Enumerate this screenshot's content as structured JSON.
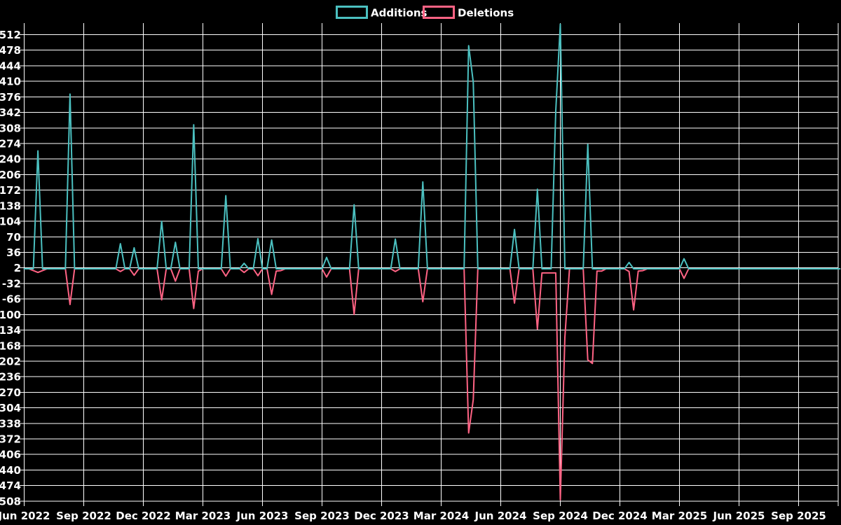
{
  "chart_data": {
    "type": "line",
    "legend_position": "top",
    "grid": true,
    "background_color": "#000000",
    "grid_color": "#ffffff",
    "text_color": "#ffffff",
    "x_tick_labels": [
      "Jun 2022",
      "Sep 2022",
      "Dec 2022",
      "Mar 2023",
      "Jun 2023",
      "Sep 2023",
      "Dec 2023",
      "Mar 2024",
      "Jun 2024",
      "Sep 2024",
      "Dec 2024",
      "Mar 2025",
      "Jun 2025",
      "Sep 2025"
    ],
    "y_tick_values": [
      512,
      478,
      444,
      410,
      376,
      342,
      308,
      274,
      240,
      206,
      172,
      138,
      104,
      70,
      36,
      2,
      -32,
      -66,
      -100,
      -134,
      -168,
      -202,
      -236,
      -270,
      -304,
      -338,
      -372,
      -406,
      -440,
      -474,
      -508
    ],
    "y_tick_step": 34,
    "ylim": [
      -508,
      512
    ],
    "x_unit": "week",
    "weeks_per_tick": 13,
    "total_weeks": 179,
    "series": [
      {
        "name": "Additions",
        "color": "#4bc0c0",
        "points_by_week": {
          "3": 258,
          "10": 382,
          "21": 55,
          "24": 46,
          "30": 104,
          "33": 58,
          "37": 315,
          "44": 160,
          "48": 12,
          "51": 66,
          "54": 63,
          "66": 25,
          "72": 140,
          "81": 65,
          "87": 190,
          "97": 488,
          "98": 408,
          "107": 86,
          "112": 174,
          "116": 345,
          "117": 535,
          "123": 272,
          "132": 14,
          "144": 22
        }
      },
      {
        "name": "Deletions",
        "color": "#ff6384",
        "points_by_week": {
          "2": -4,
          "3": -8,
          "4": -4,
          "10": -78,
          "21": -6,
          "24": -14,
          "30": -68,
          "33": -27,
          "37": -87,
          "38": -5,
          "44": -16,
          "48": -8,
          "51": -15,
          "54": -56,
          "55": -5,
          "56": -4,
          "66": -18,
          "72": -100,
          "81": -6,
          "87": -72,
          "97": -359,
          "98": -286,
          "107": -75,
          "112": -132,
          "113": -9,
          "114": -9,
          "115": -9,
          "116": -9,
          "117": -505,
          "118": -150,
          "123": -199,
          "124": -207,
          "125": -5,
          "126": -5,
          "132": -6,
          "133": -90,
          "134": -5,
          "135": -4,
          "144": -21
        }
      }
    ]
  }
}
